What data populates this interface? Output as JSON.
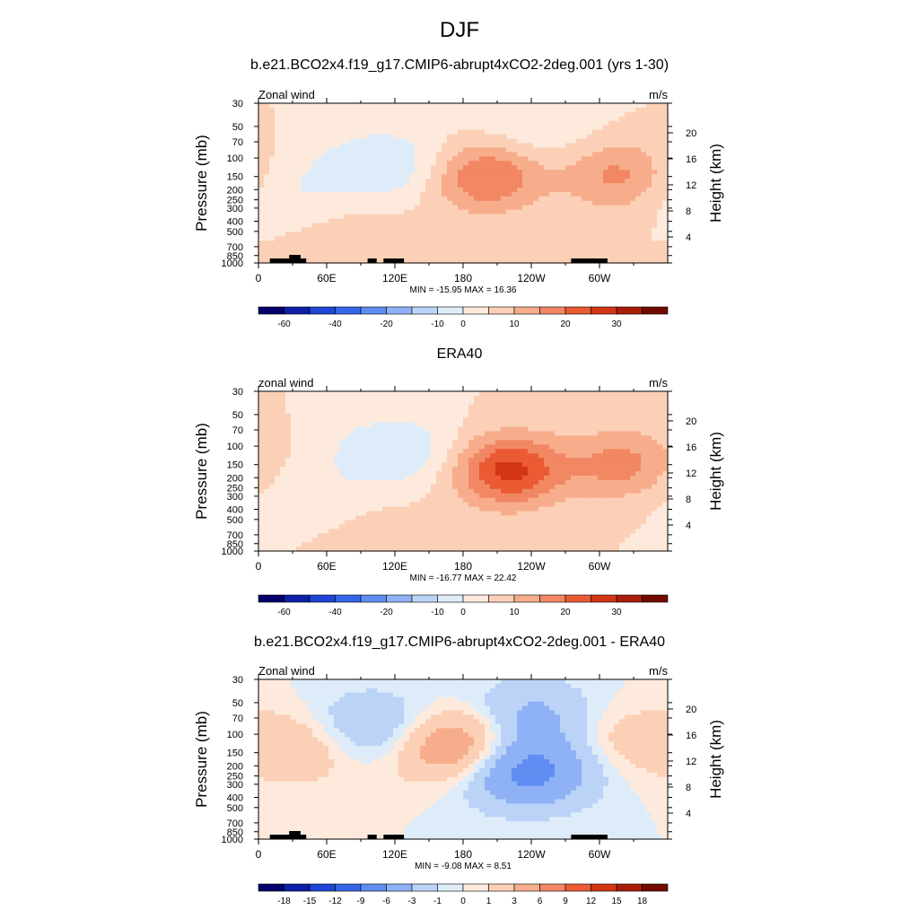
{
  "figure": {
    "title": "DJF"
  },
  "chart_data": [
    {
      "type": "heatmap",
      "title": "b.e21.BCO2x4.f19_g17.CMIP6-abrupt4xCO2-2deg.001 (yrs 1-30)",
      "left_label": "Zonal wind",
      "right_label": "m/s",
      "ylabel": "Pressure (mb)",
      "y2label": "Height (km)",
      "x_ticks": [
        "0",
        "60E",
        "120E",
        "180",
        "120W",
        "60W"
      ],
      "y_ticks": [
        "30",
        "50",
        "70",
        "100",
        "150",
        "200",
        "250",
        "300",
        "400",
        "500",
        "700",
        "850",
        "1000"
      ],
      "y2_ticks": [
        "20",
        "16",
        "12",
        "8",
        "4"
      ],
      "stats": "MIN = -15.95  MAX =  16.36",
      "colorbar_labels": [
        "-60",
        "-40",
        "-20",
        "-10",
        "0",
        "10",
        "20",
        "30"
      ],
      "features": [
        {
          "name": "negative",
          "lon": 110,
          "level": 115,
          "value": -10
        },
        {
          "name": "negative",
          "lon": 240,
          "level": 50,
          "value": -5
        },
        {
          "name": "negative",
          "lon": 20,
          "level": 200,
          "value": -5
        },
        {
          "name": "jet",
          "lon": 200,
          "level": 150,
          "value": 16
        },
        {
          "name": "jet",
          "lon": 318,
          "level": 150,
          "value": 12
        },
        {
          "name": "positive",
          "lon": 90,
          "level": 700,
          "value": 4
        }
      ]
    },
    {
      "type": "heatmap",
      "title": "ERA40",
      "left_label": "zonal wind",
      "right_label": "m/s",
      "ylabel": "Pressure (mb)",
      "y2label": "Height (km)",
      "x_ticks": [
        "0",
        "60E",
        "120E",
        "180",
        "120W",
        "60W"
      ],
      "y_ticks": [
        "30",
        "50",
        "70",
        "100",
        "150",
        "200",
        "250",
        "300",
        "400",
        "500",
        "700",
        "850",
        "1000"
      ],
      "y2_ticks": [
        "20",
        "16",
        "12",
        "8",
        "4"
      ],
      "stats": "MIN = -16.77  MAX =  22.42",
      "colorbar_labels": [
        "-60",
        "-40",
        "-20",
        "-10",
        "0",
        "10",
        "20",
        "30"
      ],
      "features": [
        {
          "name": "negative",
          "lon": 120,
          "level": 110,
          "value": -10
        },
        {
          "name": "negative",
          "lon": 40,
          "level": 300,
          "value": -4
        },
        {
          "name": "jet",
          "lon": 220,
          "level": 170,
          "value": 22
        },
        {
          "name": "jet",
          "lon": 320,
          "level": 150,
          "value": 12
        },
        {
          "name": "positive",
          "lon": 110,
          "level": 800,
          "value": 3
        }
      ]
    },
    {
      "type": "heatmap",
      "title": "b.e21.BCO2x4.f19_g17.CMIP6-abrupt4xCO2-2deg.001 - ERA40",
      "left_label": "Zonal wind",
      "right_label": "m/s",
      "ylabel": "Pressure (mb)",
      "y2label": "Height (km)",
      "x_ticks": [
        "0",
        "60E",
        "120E",
        "180",
        "120W",
        "60W"
      ],
      "y_ticks": [
        "30",
        "50",
        "70",
        "100",
        "150",
        "200",
        "250",
        "300",
        "400",
        "500",
        "700",
        "850",
        "1000"
      ],
      "y2_ticks": [
        "20",
        "16",
        "12",
        "8",
        "4"
      ],
      "stats": "MIN = -9.08  MAX =  8.51",
      "colorbar_labels": [
        "-18",
        "-15",
        "-12",
        "-9",
        "-6",
        "-3",
        "-1",
        "0",
        "1",
        "3",
        "6",
        "9",
        "12",
        "15",
        "18"
      ],
      "features": [
        {
          "name": "positive",
          "lon": 175,
          "level": 130,
          "value": 7
        },
        {
          "name": "negative",
          "lon": 235,
          "level": 220,
          "value": -8
        },
        {
          "name": "negative",
          "lon": 240,
          "level": 70,
          "value": -4
        },
        {
          "name": "negative",
          "lon": 100,
          "level": 90,
          "value": -4
        },
        {
          "name": "positive",
          "lon": 40,
          "level": 130,
          "value": 3
        },
        {
          "name": "positive",
          "lon": 310,
          "level": 110,
          "value": 2
        }
      ]
    }
  ],
  "palette": {
    "wind": [
      "#03006b",
      "#0c1fa6",
      "#1e45d4",
      "#3466e8",
      "#5f8df2",
      "#8fb1f5",
      "#bbd3f7",
      "#deecfa",
      "#fdeadc",
      "#fbd0b6",
      "#f7ad8c",
      "#f28764",
      "#ea5b34",
      "#d23614",
      "#a81d08",
      "#730a00"
    ],
    "diff": [
      "#03006b",
      "#0c1fa6",
      "#1e45d4",
      "#3466e8",
      "#5f8df2",
      "#8fb1f5",
      "#bbd3f7",
      "#deecfa",
      "#fdeadc",
      "#fbd0b6",
      "#f7ad8c",
      "#f28764",
      "#ea5b34",
      "#d23614",
      "#a81d08",
      "#730a00"
    ],
    "land": "#000000"
  }
}
